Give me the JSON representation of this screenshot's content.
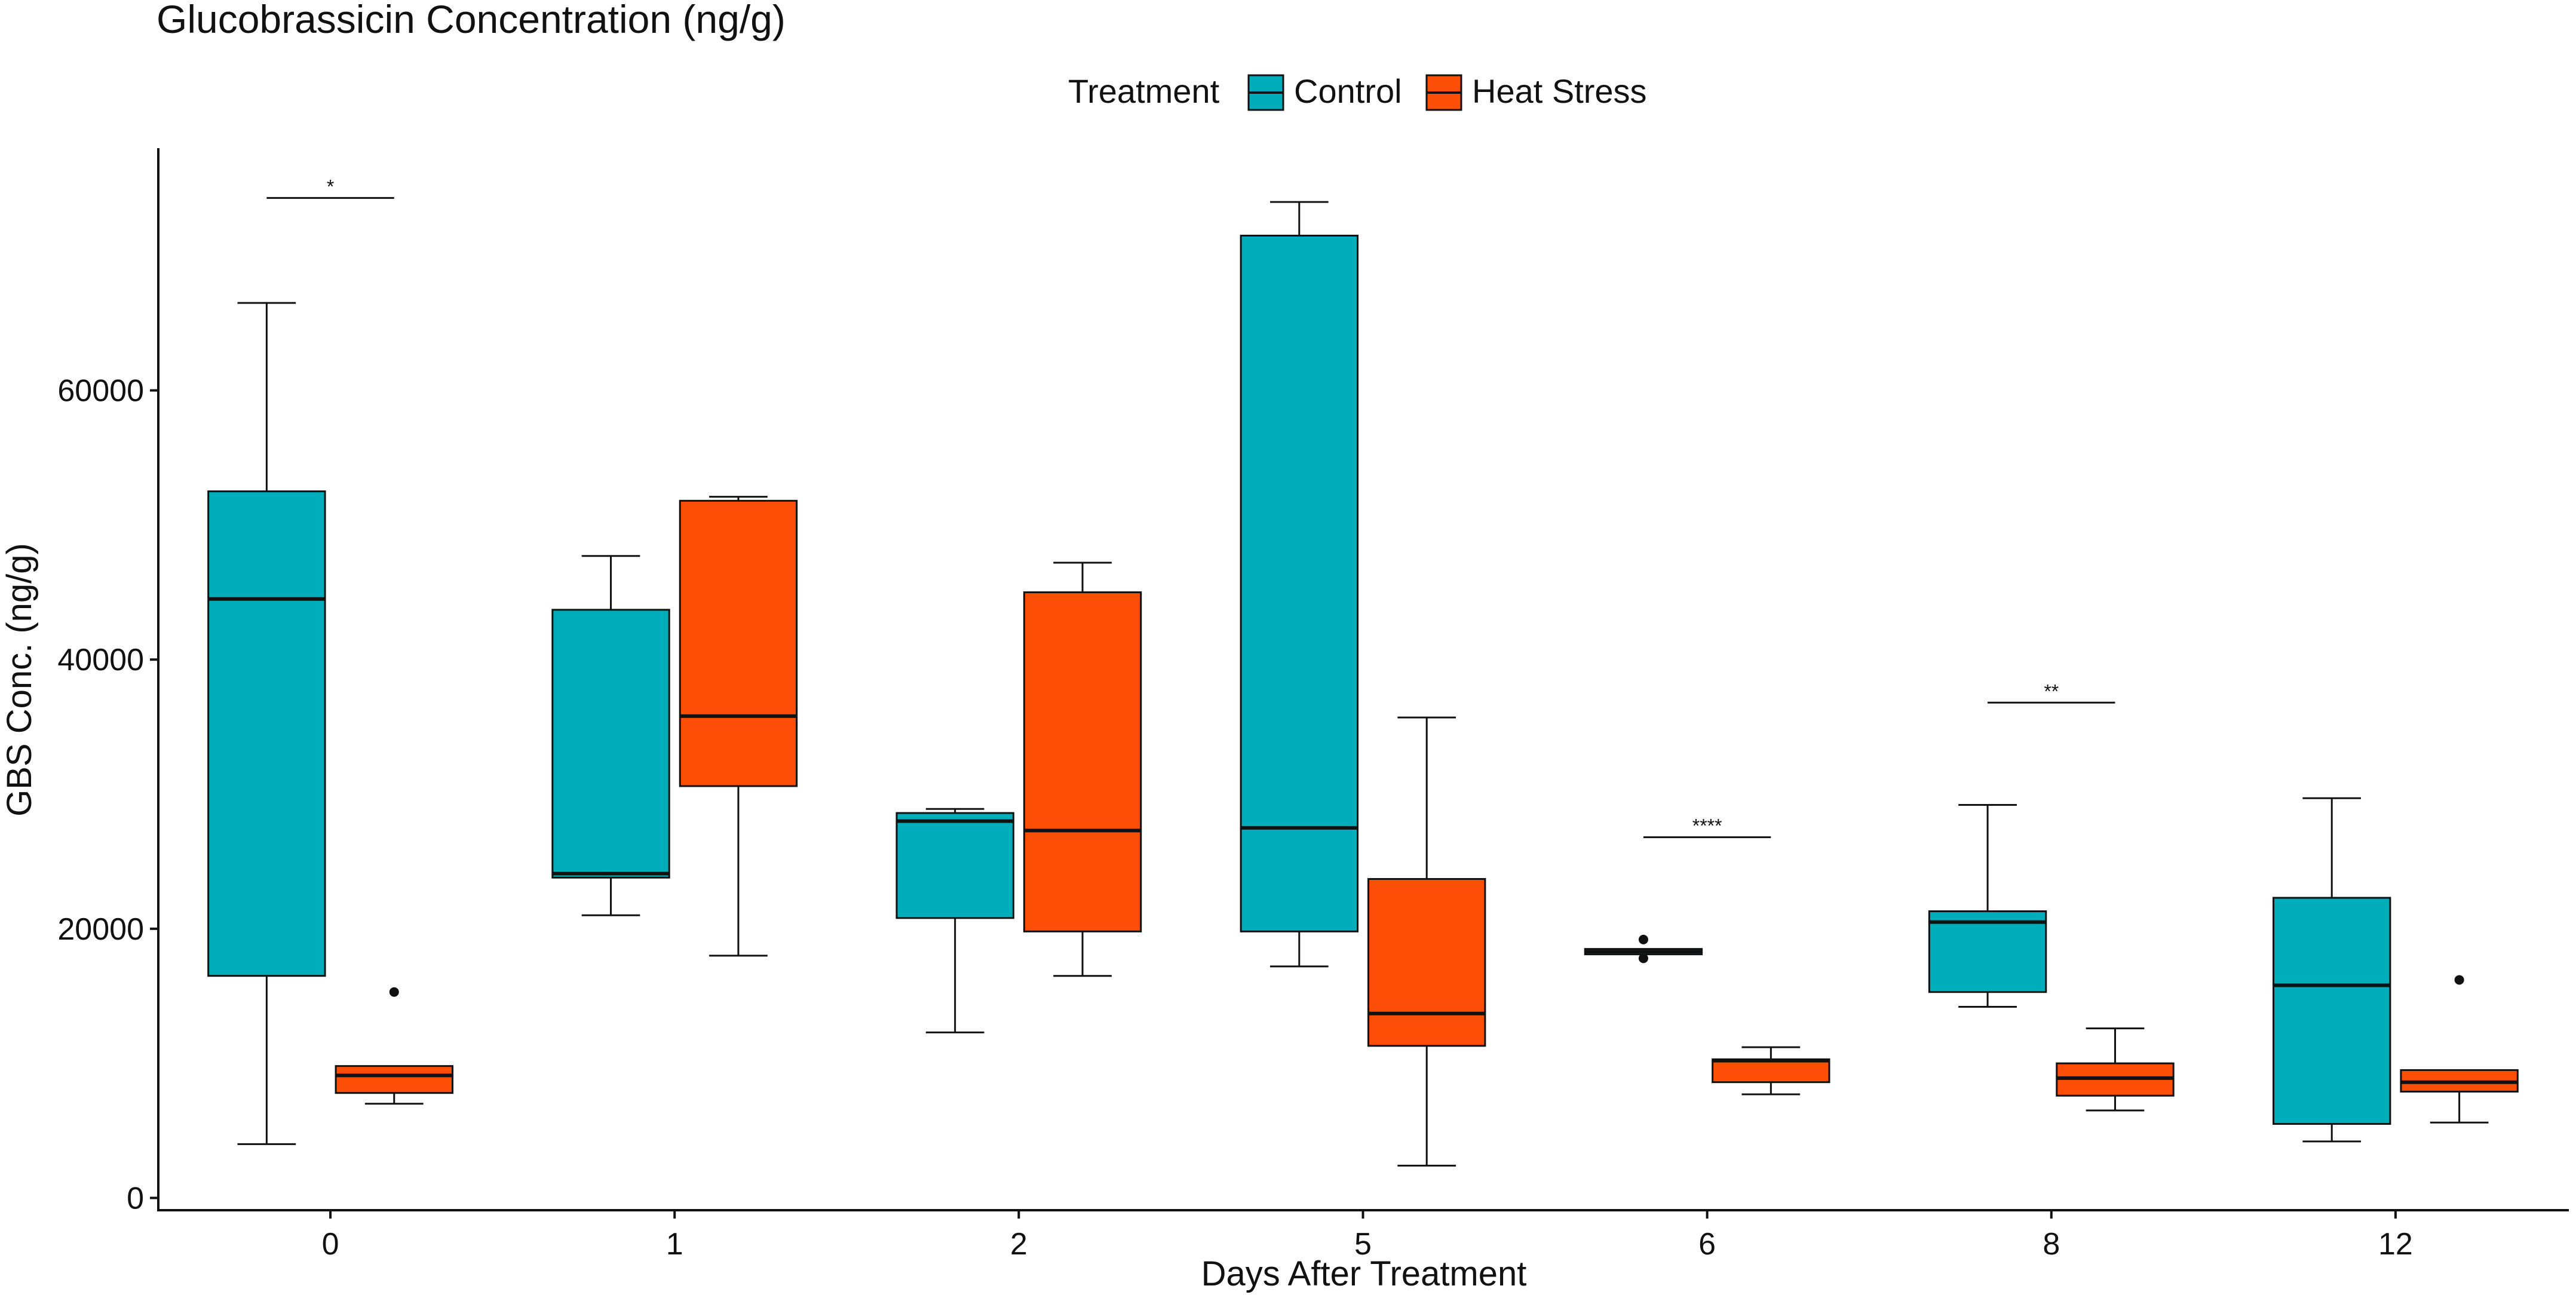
{
  "chart_data": {
    "type": "boxplot",
    "title": "Glucobrassicin Concentration (ng/g)",
    "xlabel": "Days After Treatment",
    "ylabel": "GBS Conc. (ng/g)",
    "ylim": [
      -1000,
      78000
    ],
    "yticks": [
      0,
      20000,
      40000,
      60000
    ],
    "ytick_labels": [
      "0",
      "20000",
      "40000",
      "60000"
    ],
    "grid": false,
    "legend": {
      "title": "Treatment",
      "position": "top",
      "entries": [
        {
          "label": "Control",
          "color": "#00AEBB"
        },
        {
          "label": "Heat Stress",
          "color": "#FC4E07"
        }
      ]
    },
    "categories": [
      "0",
      "1",
      "2",
      "5",
      "6",
      "8",
      "12"
    ],
    "series": [
      {
        "name": "Control",
        "color": "#00AEBB",
        "boxes": [
          {
            "whisker_low": 4000,
            "q1": 16500,
            "median": 44500,
            "q3": 52500,
            "whisker_high": 66500,
            "outliers": []
          },
          {
            "whisker_low": 21000,
            "q1": 23800,
            "median": 24100,
            "q3": 43700,
            "whisker_high": 47700,
            "outliers": []
          },
          {
            "whisker_low": 12300,
            "q1": 20800,
            "median": 28000,
            "q3": 28600,
            "whisker_high": 28900,
            "outliers": []
          },
          {
            "whisker_low": 17200,
            "q1": 19800,
            "median": 27500,
            "q3": 71500,
            "whisker_high": 74000,
            "outliers": []
          },
          {
            "whisker_low": 18100,
            "q1": 18100,
            "median": 18300,
            "q3": 18500,
            "whisker_high": 18500,
            "outliers": [
              17800,
              19200
            ]
          },
          {
            "whisker_low": 14200,
            "q1": 15300,
            "median": 20500,
            "q3": 21300,
            "whisker_high": 29200,
            "outliers": []
          },
          {
            "whisker_low": 4200,
            "q1": 5500,
            "median": 15800,
            "q3": 22300,
            "whisker_high": 29700,
            "outliers": []
          }
        ]
      },
      {
        "name": "Heat Stress",
        "color": "#FC4E07",
        "boxes": [
          {
            "whisker_low": 7000,
            "q1": 7800,
            "median": 9100,
            "q3": 9800,
            "whisker_high": 9800,
            "outliers": [
              15300
            ]
          },
          {
            "whisker_low": 18000,
            "q1": 30600,
            "median": 35800,
            "q3": 51800,
            "whisker_high": 52100,
            "outliers": []
          },
          {
            "whisker_low": 16500,
            "q1": 19800,
            "median": 27300,
            "q3": 45000,
            "whisker_high": 47200,
            "outliers": []
          },
          {
            "whisker_low": 2400,
            "q1": 11300,
            "median": 13700,
            "q3": 23700,
            "whisker_high": 35700,
            "outliers": []
          },
          {
            "whisker_low": 7700,
            "q1": 8600,
            "median": 10200,
            "q3": 10300,
            "whisker_high": 11200,
            "outliers": []
          },
          {
            "whisker_low": 6500,
            "q1": 7600,
            "median": 8900,
            "q3": 10000,
            "whisker_high": 12600,
            "outliers": []
          },
          {
            "whisker_low": 5600,
            "q1": 7900,
            "median": 8600,
            "q3": 9500,
            "whisker_high": 9500,
            "outliers": [
              16200
            ]
          }
        ]
      }
    ],
    "annotations": [
      {
        "category": "0",
        "label": "*",
        "y": 74300
      },
      {
        "category": "6",
        "label": "****",
        "y": 26800
      },
      {
        "category": "8",
        "label": "**",
        "y": 36800
      }
    ]
  }
}
